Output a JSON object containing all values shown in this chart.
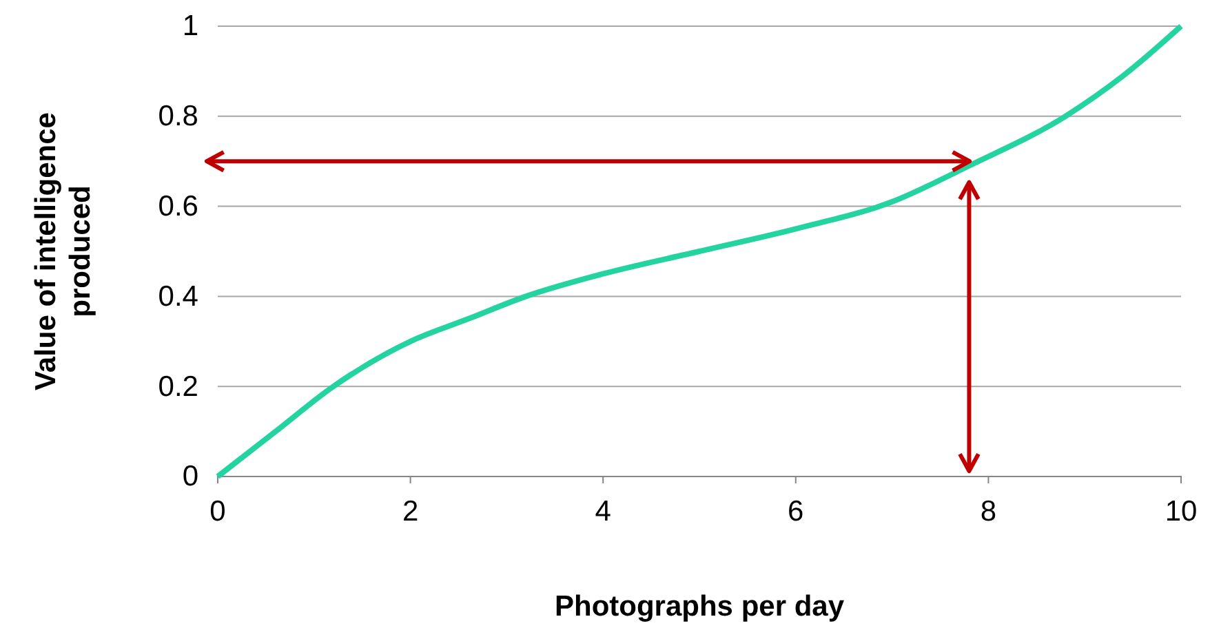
{
  "chart_data": {
    "type": "line",
    "xlabel": "Photographs per day",
    "ylabel": "Value of intelligence produced",
    "x": [
      0,
      0.6,
      1.2,
      2,
      2.6,
      3.2,
      4,
      5,
      6,
      7,
      7.8,
      8.8,
      9.4,
      10
    ],
    "series": [
      {
        "color": "#23d3a0",
        "values": [
          0,
          0.1,
          0.2,
          0.3,
          0.35,
          0.4,
          0.45,
          0.5,
          0.55,
          0.61,
          0.69,
          0.8,
          0.89,
          1
        ]
      }
    ],
    "xlim": [
      0,
      10
    ],
    "xticks": [
      0,
      2,
      4,
      6,
      8,
      10
    ],
    "ylim": [
      0,
      1
    ],
    "yticks": [
      0,
      0.2,
      0.4,
      0.6,
      0.8,
      1
    ],
    "ref_lines": [
      {
        "axis": "y",
        "value": 0.7,
        "color": "#c00000"
      },
      {
        "axis": "x",
        "value": 7.8,
        "color": "#c00000"
      }
    ],
    "grid": "y",
    "marker": "none",
    "line_style": "solid"
  }
}
